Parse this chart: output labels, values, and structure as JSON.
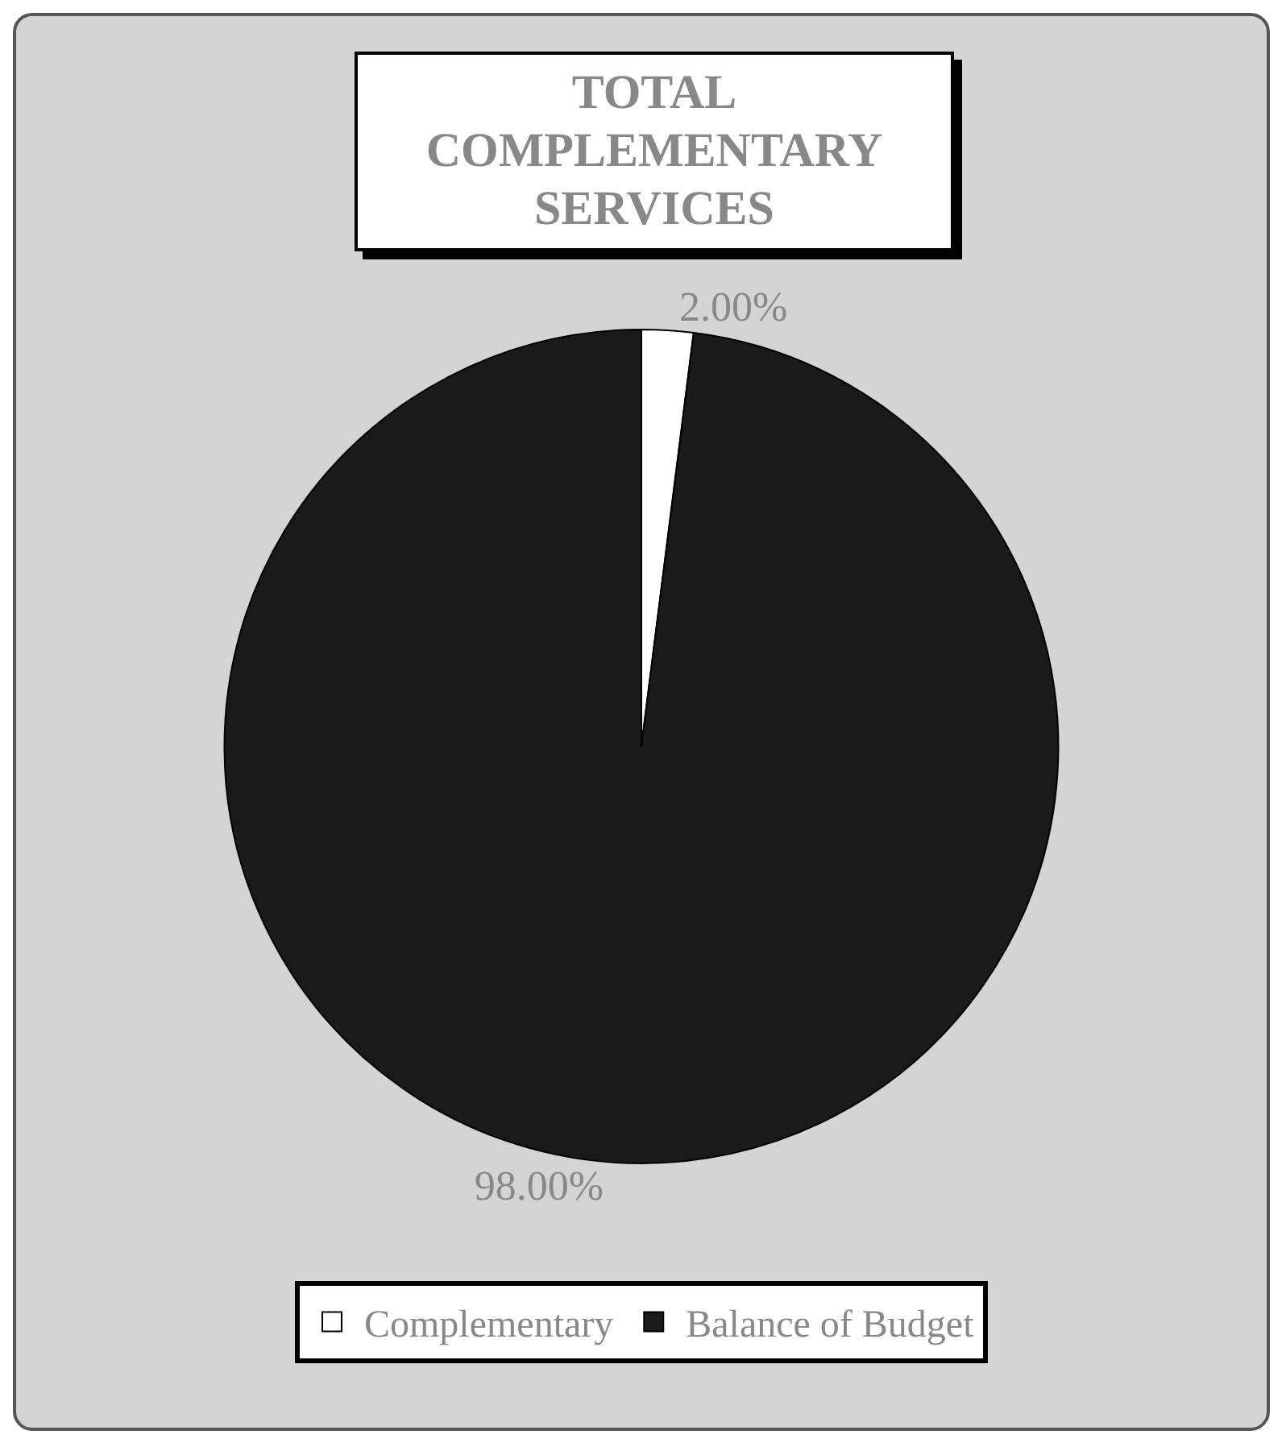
{
  "chart_data": {
    "type": "pie",
    "title": "TOTAL COMPLEMENTARY SERVICES",
    "categories": [
      "Complementary",
      "Balance of Budget"
    ],
    "values": [
      2,
      98
    ],
    "colors": [
      "#ffffff",
      "#1a1a1a"
    ],
    "data_labels": true,
    "value_labels": [
      "2.00%",
      "98.00%"
    ],
    "legend": "bottom"
  }
}
